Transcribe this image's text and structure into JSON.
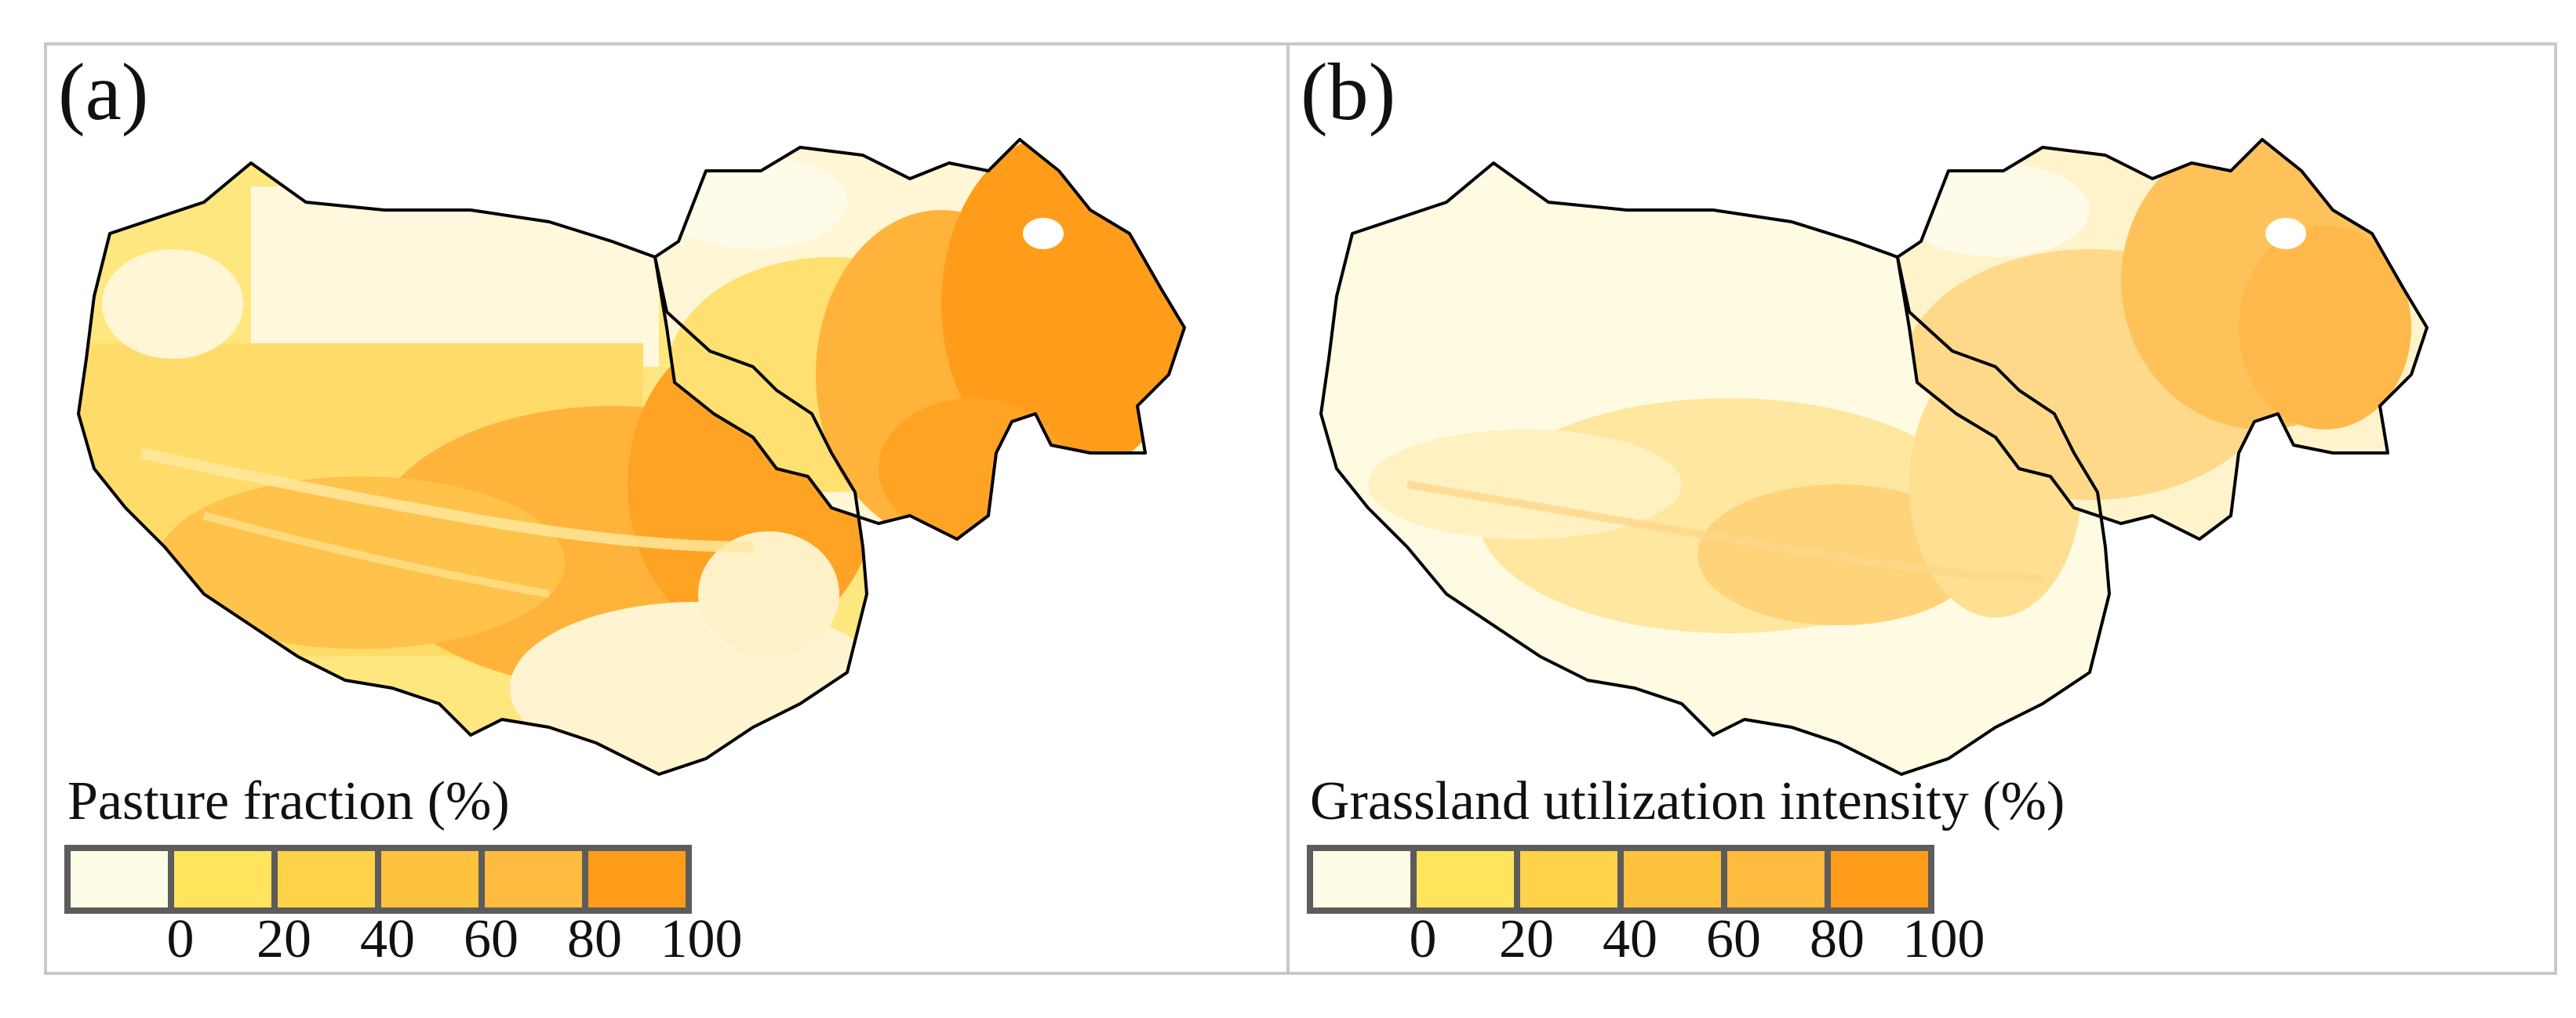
{
  "panels": [
    {
      "label": "(a)",
      "legend": {
        "title": "Pasture fraction (%)",
        "ticks": [
          "0",
          "20",
          "40",
          "60",
          "80",
          "100"
        ],
        "colors": [
          "#fefce6",
          "#ffe45c",
          "#ffd24a",
          "#ffc23c",
          "#ffbb40",
          "#ff9c1a"
        ]
      }
    },
    {
      "label": "(b)",
      "legend": {
        "title": "Grassland utilization intensity (%)",
        "ticks": [
          "0",
          "20",
          "40",
          "60",
          "80",
          "100"
        ],
        "colors": [
          "#fefce6",
          "#ffe45c",
          "#ffd24a",
          "#ffc23c",
          "#ffbb40",
          "#ff9c1a"
        ]
      }
    }
  ]
}
